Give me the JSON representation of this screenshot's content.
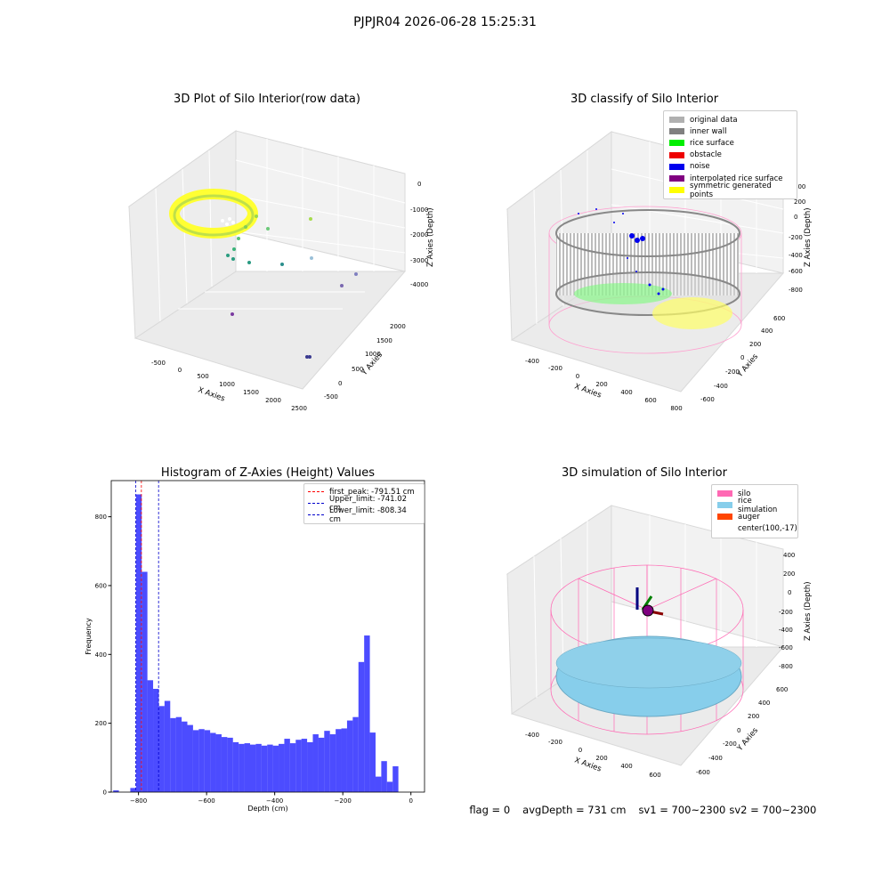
{
  "suptitle": "PJPJR04 2026-06-28 15:25:31",
  "panels": {
    "raw": {
      "title": "3D Plot of Silo Interior(row data)",
      "xlabel": "X Axies",
      "ylabel": "Y Axies",
      "zlabel": "Z Axies (Depth)",
      "xticks": [
        "-500",
        "0",
        "500",
        "1000",
        "1500",
        "2000",
        "2500"
      ],
      "yticks": [
        "-500",
        "0",
        "500",
        "1000",
        "1500",
        "2000"
      ],
      "zticks": [
        "0",
        "-1000",
        "-2000",
        "-3000",
        "-4000"
      ]
    },
    "classify": {
      "title": "3D classify of Silo Interior",
      "xlabel": "X Axies",
      "ylabel": "Y Axies",
      "zlabel": "Z Axies (Depth)",
      "xticks": [
        "-400",
        "-200",
        "0",
        "200",
        "400",
        "600",
        "800"
      ],
      "yticks": [
        "-600",
        "-400",
        "-200",
        "0",
        "200",
        "400",
        "600"
      ],
      "zticks": [
        "400",
        "200",
        "0",
        "-200",
        "-400",
        "-600",
        "-800"
      ],
      "legend": [
        {
          "label": "original data",
          "color": "#b0b0b0"
        },
        {
          "label": "inner wall",
          "color": "#808080"
        },
        {
          "label": "rice surface",
          "color": "#00ee00"
        },
        {
          "label": "obstacle",
          "color": "#ee0000"
        },
        {
          "label": "noise",
          "color": "#0000ee"
        },
        {
          "label": "interpolated rice surface",
          "color": "#800080"
        },
        {
          "label": "symmetric generated points",
          "color": "#ffff00"
        }
      ]
    },
    "simulation": {
      "title": "3D simulation of Silo Interior",
      "xlabel": "X Axies",
      "ylabel": "Y Axies",
      "zlabel": "Z Axies (Depth)",
      "xticks": [
        "-400",
        "-200",
        "0",
        "200",
        "400",
        "600"
      ],
      "yticks": [
        "-600",
        "-400",
        "-200",
        "0",
        "200",
        "400",
        "600"
      ],
      "zticks": [
        "400",
        "200",
        "0",
        "-200",
        "-400",
        "-600",
        "-800"
      ],
      "legend": [
        {
          "label": "silo",
          "color": "#ff69b4"
        },
        {
          "label": "rice simulation",
          "color": "#87ceeb"
        },
        {
          "label": "auger",
          "color": "#ff4500"
        },
        {
          "label": "center(100,-17)",
          "color": "none"
        }
      ]
    }
  },
  "chart_data": [
    {
      "type": "histogram",
      "title": "Histogram of Z-Axies (Height) Values",
      "xlabel": "Depth (cm)",
      "ylabel": "Frequency",
      "xlim": [
        -880,
        40
      ],
      "ylim": [
        0,
        905
      ],
      "xticks": [
        -800,
        -600,
        -400,
        -200,
        0
      ],
      "yticks": [
        0,
        200,
        400,
        600,
        800
      ],
      "bin_start": -874.3,
      "bin_width": 16.75,
      "counts": [
        5,
        0,
        0,
        12,
        865,
        640,
        325,
        300,
        250,
        265,
        215,
        218,
        205,
        195,
        180,
        183,
        180,
        172,
        168,
        160,
        158,
        145,
        140,
        142,
        138,
        140,
        135,
        138,
        135,
        140,
        155,
        142,
        152,
        155,
        145,
        168,
        158,
        178,
        168,
        183,
        185,
        208,
        218,
        378,
        455,
        173,
        45,
        90,
        30,
        75
      ],
      "bar_color": "#0000ff",
      "vlines": [
        {
          "label": "first_peak: -791.51 cm",
          "value": -791.51,
          "color": "#ff0000"
        },
        {
          "label": "Upper_limit: -741.02 cm",
          "value": -741.02,
          "color": "#0000cc"
        },
        {
          "label": "Lower_limit: -808.34 cm",
          "value": -808.34,
          "color": "#0000cc"
        }
      ],
      "legend_position": "upper right"
    }
  ],
  "footer": {
    "flag": "flag = 0",
    "avg": "avgDepth = 731 cm",
    "sv1": "sv1 = 700~2300",
    "sv2": "sv2 = 700~2300"
  }
}
